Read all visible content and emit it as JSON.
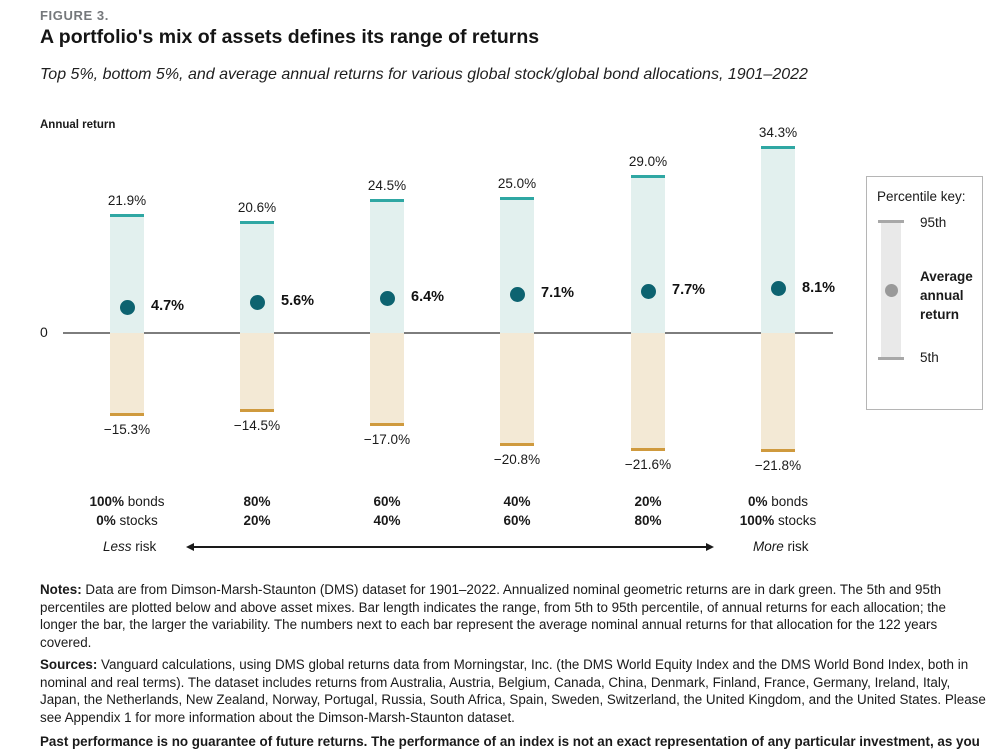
{
  "figure_label": "FIGURE 3.",
  "chart_data": {
    "type": "bar",
    "title": "A portfolio's mix of assets defines its range of returns",
    "subtitle": "Top 5%, bottom 5%, and average annual returns for various global stock/global bond allocations, 1901–2022",
    "ylabel": "Annual return",
    "zero_tick": "0",
    "unit": "%",
    "ylim": [
      -25,
      37
    ],
    "grid": false,
    "categories": [
      "100% bonds / 0% stocks",
      "80% bonds / 20% stocks",
      "60% bonds / 40% stocks",
      "40% bonds / 60% stocks",
      "20% bonds / 80% stocks",
      "0% bonds / 100% stocks"
    ],
    "category_labels": [
      {
        "bonds": "100%",
        "bonds_suffix": " bonds",
        "stocks": "0%",
        "stocks_suffix": " stocks"
      },
      {
        "bonds": "80%",
        "bonds_suffix": "",
        "stocks": "20%",
        "stocks_suffix": ""
      },
      {
        "bonds": "60%",
        "bonds_suffix": "",
        "stocks": "40%",
        "stocks_suffix": ""
      },
      {
        "bonds": "40%",
        "bonds_suffix": "",
        "stocks": "60%",
        "stocks_suffix": ""
      },
      {
        "bonds": "20%",
        "bonds_suffix": "",
        "stocks": "80%",
        "stocks_suffix": ""
      },
      {
        "bonds": "0%",
        "bonds_suffix": " bonds",
        "stocks": "100%",
        "stocks_suffix": " stocks"
      }
    ],
    "series": [
      {
        "name": "95th percentile",
        "values": [
          21.9,
          20.6,
          24.5,
          25.0,
          29.0,
          34.3
        ]
      },
      {
        "name": "Average annual return",
        "values": [
          4.7,
          5.6,
          6.4,
          7.1,
          7.7,
          8.1
        ]
      },
      {
        "name": "5th percentile",
        "values": [
          -15.3,
          -14.5,
          -17.0,
          -20.8,
          -21.6,
          -21.8
        ]
      }
    ],
    "legend": {
      "position": "right",
      "title": "Percentile key:",
      "p95_label": "95th",
      "avg_label": "Average annual return",
      "p5_label": "5th"
    },
    "risk_spectrum": {
      "less": "Less",
      "more": "More",
      "word": "risk"
    },
    "colors": {
      "positive_fill": "#e2f0ee",
      "positive_cap": "#2fa7a3",
      "negative_fill": "#f3e9d5",
      "negative_cap": "#cf9a3e",
      "avg_dot": "#0d6370",
      "zero_line": "#7d7d7d"
    }
  },
  "notes": {
    "label": "Notes:",
    "text": " Data are from Dimson-Marsh-Staunton (DMS) dataset for 1901–2022. Annualized nominal geometric returns are in dark green. The 5th and 95th percentiles are plotted below and above asset mixes. Bar length indicates the range, from 5th to 95th percentile, of annual returns for each allocation; the longer the bar, the larger the variability. The numbers next to each bar represent the average nominal annual returns for that allocation for the 122 years covered."
  },
  "sources": {
    "label": "Sources:",
    "text": " Vanguard calculations, using DMS global returns data from Morningstar, Inc. (the DMS World Equity Index and the DMS World Bond Index, both in nominal and real terms). The dataset includes returns from Australia, Austria, Belgium, Canada, China, Denmark, Finland, France, Germany, Ireland, Italy, Japan, the Netherlands, New Zealand, Norway, Portugal, Russia, South Africa, Spain, Sweden, Switzerland, the United Kingdom, and the United States. Please see Appendix 1 for more information about the Dimson-Marsh-Staunton dataset."
  },
  "disclaimer": "Past performance is no guarantee of future returns. The performance of an index is not an exact representation of any particular investment, as you cannot invest directly in an index."
}
